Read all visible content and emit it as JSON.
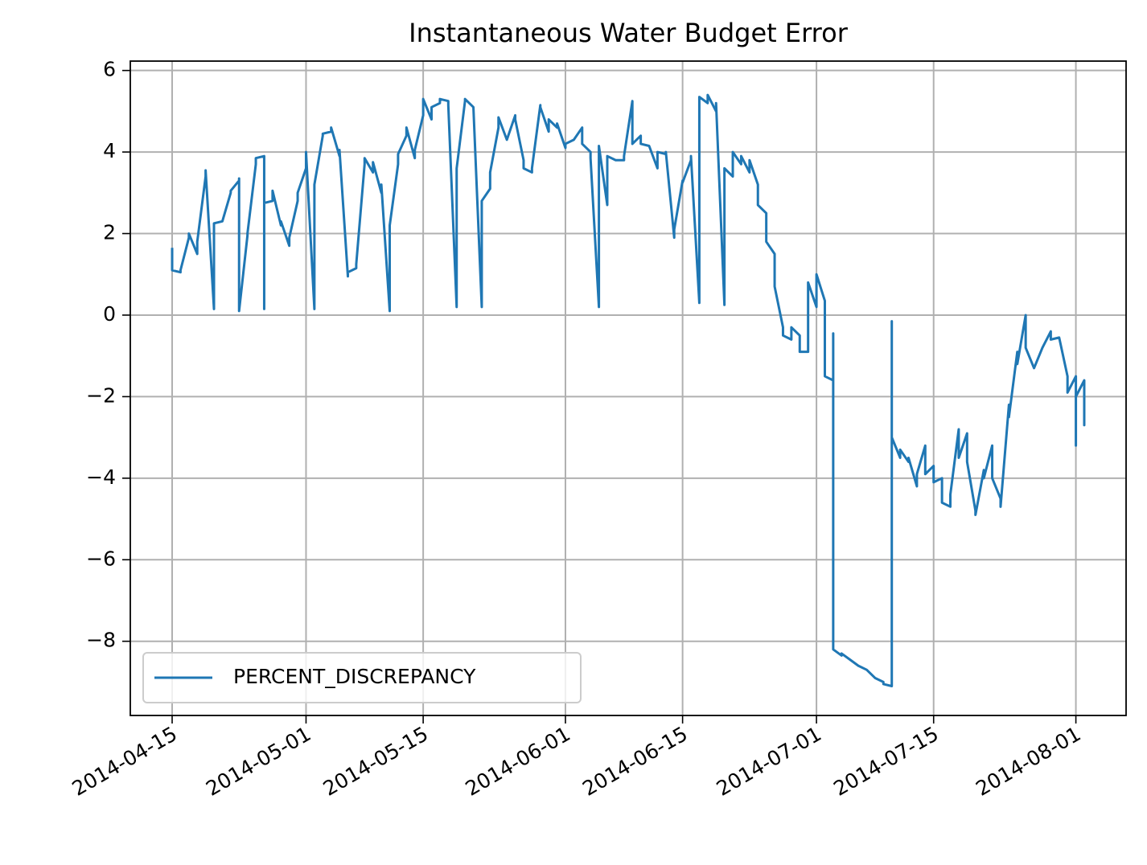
{
  "chart_data": {
    "type": "line",
    "title": "Instantaneous Water Budget Error",
    "x": [
      "2014-04-15",
      "2014-04-15",
      "2014-04-16",
      "2014-04-16",
      "2014-04-17",
      "2014-04-17",
      "2014-04-18",
      "2014-04-18",
      "2014-04-19",
      "2014-04-19",
      "2014-04-20",
      "2014-04-20",
      "2014-04-20",
      "2014-04-21",
      "2014-04-22",
      "2014-04-22",
      "2014-04-23",
      "2014-04-23",
      "2014-04-23",
      "2014-04-24",
      "2014-04-24",
      "2014-04-25",
      "2014-04-25",
      "2014-04-26",
      "2014-04-26",
      "2014-04-26",
      "2014-04-27",
      "2014-04-27",
      "2014-04-28",
      "2014-04-28",
      "2014-04-29",
      "2014-04-29",
      "2014-04-30",
      "2014-04-30",
      "2014-05-01",
      "2014-05-01",
      "2014-05-02",
      "2014-05-02",
      "2014-05-02",
      "2014-05-03",
      "2014-05-03",
      "2014-05-04",
      "2014-05-04",
      "2014-05-05",
      "2014-05-05",
      "2014-05-06",
      "2014-05-06",
      "2014-05-07",
      "2014-05-07",
      "2014-05-08",
      "2014-05-08",
      "2014-05-09",
      "2014-05-09",
      "2014-05-10",
      "2014-05-10",
      "2014-05-11",
      "2014-05-11",
      "2014-05-11",
      "2014-05-12",
      "2014-05-12",
      "2014-05-13",
      "2014-05-13",
      "2014-05-14",
      "2014-05-14",
      "2014-05-15",
      "2014-05-15",
      "2014-05-16",
      "2014-05-16",
      "2014-05-17",
      "2014-05-17",
      "2014-05-18",
      "2014-05-18",
      "2014-05-19",
      "2014-05-19",
      "2014-05-19",
      "2014-05-20",
      "2014-05-20",
      "2014-05-21",
      "2014-05-22",
      "2014-05-22",
      "2014-05-23",
      "2014-05-23",
      "2014-05-24",
      "2014-05-24",
      "2014-05-25",
      "2014-05-26",
      "2014-05-26",
      "2014-05-27",
      "2014-05-27",
      "2014-05-28",
      "2014-05-28",
      "2014-05-29",
      "2014-05-29",
      "2014-05-30",
      "2014-05-30",
      "2014-05-31",
      "2014-05-31",
      "2014-06-01",
      "2014-06-01",
      "2014-06-02",
      "2014-06-03",
      "2014-06-03",
      "2014-06-04",
      "2014-06-04",
      "2014-06-05",
      "2014-06-05",
      "2014-06-06",
      "2014-06-06",
      "2014-06-07",
      "2014-06-08",
      "2014-06-08",
      "2014-06-09",
      "2014-06-09",
      "2014-06-10",
      "2014-06-10",
      "2014-06-11",
      "2014-06-12",
      "2014-06-12",
      "2014-06-13",
      "2014-06-13",
      "2014-06-14",
      "2014-06-14",
      "2014-06-15",
      "2014-06-15",
      "2014-06-16",
      "2014-06-16",
      "2014-06-17",
      "2014-06-17",
      "2014-06-17",
      "2014-06-18",
      "2014-06-18",
      "2014-06-19",
      "2014-06-19",
      "2014-06-20",
      "2014-06-20",
      "2014-06-20",
      "2014-06-21",
      "2014-06-21",
      "2014-06-22",
      "2014-06-22",
      "2014-06-23",
      "2014-06-23",
      "2014-06-24",
      "2014-06-24",
      "2014-06-25",
      "2014-06-25",
      "2014-06-26",
      "2014-06-26",
      "2014-06-27",
      "2014-06-27",
      "2014-06-28",
      "2014-06-28",
      "2014-06-29",
      "2014-06-29",
      "2014-06-30",
      "2014-06-30",
      "2014-07-01",
      "2014-07-01",
      "2014-07-02",
      "2014-07-02",
      "2014-07-03",
      "2014-07-03",
      "2014-07-03",
      "2014-07-04",
      "2014-07-04",
      "2014-07-05",
      "2014-07-06",
      "2014-07-07",
      "2014-07-08",
      "2014-07-09",
      "2014-07-09",
      "2014-07-10",
      "2014-07-10",
      "2014-07-10",
      "2014-07-11",
      "2014-07-11",
      "2014-07-12",
      "2014-07-12",
      "2014-07-13",
      "2014-07-13",
      "2014-07-14",
      "2014-07-14",
      "2014-07-15",
      "2014-07-15",
      "2014-07-16",
      "2014-07-16",
      "2014-07-17",
      "2014-07-17",
      "2014-07-18",
      "2014-07-18",
      "2014-07-19",
      "2014-07-19",
      "2014-07-20",
      "2014-07-20",
      "2014-07-21",
      "2014-07-21",
      "2014-07-22",
      "2014-07-22",
      "2014-07-23",
      "2014-07-23",
      "2014-07-24",
      "2014-07-24",
      "2014-07-25",
      "2014-07-25",
      "2014-07-26",
      "2014-07-26",
      "2014-07-27",
      "2014-07-28",
      "2014-07-29",
      "2014-07-29",
      "2014-07-30",
      "2014-07-31",
      "2014-07-31",
      "2014-08-01",
      "2014-08-01",
      "2014-08-01",
      "2014-08-02",
      "2014-08-02",
      "2014-08-02"
    ],
    "series": [
      {
        "name": "PERCENT_DISCREPANCY",
        "color": "#1f77b4",
        "values": [
          1.65,
          1.1,
          1.05,
          1.1,
          1.9,
          2.0,
          1.5,
          1.8,
          3.4,
          3.55,
          0.15,
          2.1,
          2.25,
          2.3,
          3.0,
          3.05,
          3.3,
          3.35,
          0.1,
          1.95,
          2.0,
          3.7,
          3.85,
          3.9,
          0.15,
          2.75,
          2.8,
          3.05,
          2.2,
          2.3,
          1.7,
          1.9,
          2.8,
          3.0,
          3.6,
          4.0,
          0.15,
          2.9,
          3.2,
          4.4,
          4.45,
          4.5,
          4.6,
          3.9,
          4.05,
          0.95,
          1.05,
          1.15,
          1.25,
          3.7,
          3.85,
          3.5,
          3.75,
          3.0,
          3.2,
          0.1,
          2.1,
          2.2,
          3.7,
          3.95,
          4.4,
          4.6,
          3.85,
          4.05,
          4.9,
          5.3,
          4.8,
          5.1,
          5.2,
          5.3,
          5.25,
          5.15,
          0.2,
          3.3,
          3.6,
          5.25,
          5.3,
          5.1,
          0.2,
          2.8,
          3.1,
          3.5,
          4.6,
          4.85,
          4.3,
          4.9,
          4.8,
          3.8,
          3.6,
          3.5,
          3.6,
          5.15,
          5.1,
          4.5,
          4.8,
          4.6,
          4.7,
          4.1,
          4.2,
          4.3,
          4.6,
          4.2,
          4.0,
          3.85,
          0.2,
          4.15,
          2.7,
          3.9,
          3.8,
          3.8,
          3.9,
          5.25,
          4.2,
          4.4,
          4.2,
          4.15,
          3.6,
          4.0,
          3.95,
          4.0,
          1.9,
          2.1,
          3.3,
          3.25,
          3.8,
          3.9,
          0.3,
          5.3,
          5.35,
          5.2,
          5.4,
          5.0,
          5.2,
          0.25,
          3.5,
          3.6,
          3.4,
          4.0,
          3.7,
          3.9,
          3.5,
          3.8,
          3.2,
          2.7,
          2.5,
          1.8,
          1.5,
          0.7,
          -0.3,
          -0.5,
          -0.6,
          -0.3,
          -0.5,
          -0.9,
          -0.9,
          0.8,
          0.2,
          1.0,
          0.35,
          -1.5,
          -1.6,
          -0.45,
          -8.2,
          -8.35,
          -8.3,
          -8.45,
          -8.6,
          -8.7,
          -8.9,
          -9.0,
          -9.05,
          -9.1,
          -0.15,
          -3.0,
          -3.5,
          -3.3,
          -3.6,
          -3.5,
          -4.2,
          -3.9,
          -3.2,
          -3.9,
          -3.7,
          -4.1,
          -4.0,
          -4.6,
          -4.7,
          -4.4,
          -2.8,
          -3.5,
          -2.9,
          -3.6,
          -4.8,
          -4.9,
          -3.8,
          -4.0,
          -3.2,
          -4.0,
          -4.5,
          -4.7,
          -2.2,
          -2.5,
          -0.9,
          -1.2,
          0.0,
          -0.8,
          -1.3,
          -0.8,
          -0.4,
          -0.6,
          -0.55,
          -1.5,
          -1.9,
          -1.5,
          -3.2,
          -2.0,
          -1.6,
          -2.7,
          -2.3
        ]
      }
    ],
    "xlim": [
      "2014-04-10",
      "2014-08-07"
    ],
    "xticks": [
      "2014-04-15",
      "2014-05-01",
      "2014-05-15",
      "2014-06-01",
      "2014-06-15",
      "2014-07-01",
      "2014-07-15",
      "2014-08-01"
    ],
    "ylim": [
      -9.82,
      6.23
    ],
    "yticks": [
      {
        "value": -8,
        "label": "−8"
      },
      {
        "value": -6,
        "label": "−6"
      },
      {
        "value": -4,
        "label": "−4"
      },
      {
        "value": -2,
        "label": "−2"
      },
      0,
      2,
      4,
      6
    ],
    "grid": true,
    "legend": "lower left"
  }
}
